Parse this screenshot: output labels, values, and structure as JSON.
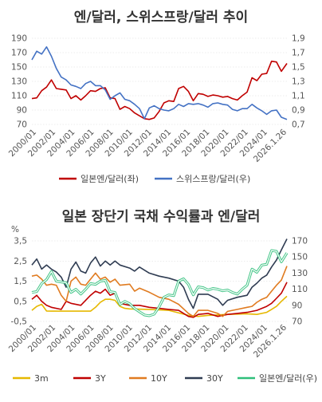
{
  "chart_data": [
    {
      "type": "line",
      "title": "엔/달러, 스위스프랑/달러 추이",
      "x_ticks": [
        "2000/01",
        "2002/01",
        "2004/01",
        "2006/01",
        "2008/01",
        "2010/01",
        "2012/01",
        "2014/01",
        "2016/01",
        "2018/01",
        "2020/01",
        "2022/01",
        "2024/01",
        "2026.1.26"
      ],
      "y_left": {
        "ticks": [
          "190",
          "170",
          "150",
          "130",
          "110",
          "90",
          "70"
        ],
        "range": [
          70,
          190
        ]
      },
      "y_right": {
        "ticks": [
          "1,9",
          "1,7",
          "1,5",
          "1,3",
          "1,1",
          "0,9",
          "0,7"
        ],
        "range": [
          0.7,
          1.9
        ]
      },
      "series": [
        {
          "name": "일본엔/달러(좌)",
          "axis": "left",
          "color": "#c00000",
          "x": [
            2000.0,
            2000.5,
            2001.0,
            2001.5,
            2002.0,
            2002.5,
            2003.0,
            2003.5,
            2004.0,
            2004.5,
            2005.0,
            2005.5,
            2006.0,
            2006.5,
            2007.0,
            2007.5,
            2008.0,
            2008.5,
            2009.0,
            2009.5,
            2010.0,
            2010.5,
            2011.0,
            2011.5,
            2012.0,
            2012.5,
            2013.0,
            2013.5,
            2014.0,
            2014.5,
            2015.0,
            2015.5,
            2016.0,
            2016.5,
            2017.0,
            2017.5,
            2018.0,
            2018.5,
            2019.0,
            2019.5,
            2020.0,
            2020.5,
            2021.0,
            2021.5,
            2022.0,
            2022.5,
            2023.0,
            2023.5,
            2024.0,
            2024.5,
            2025.0,
            2025.5,
            2026.07
          ],
          "values": [
            106,
            107,
            117,
            122,
            132,
            120,
            119,
            118,
            106,
            110,
            104,
            110,
            117,
            116,
            120,
            121,
            107,
            106,
            91,
            95,
            92,
            86,
            82,
            78,
            77,
            79,
            88,
            100,
            103,
            102,
            120,
            123,
            116,
            103,
            113,
            112,
            109,
            111,
            110,
            108,
            109,
            106,
            104,
            110,
            115,
            135,
            131,
            140,
            141,
            158,
            157,
            144,
            155
          ]
        },
        {
          "name": "스위스프랑/달러(우)",
          "axis": "right",
          "color": "#4472c4",
          "x": [
            2000.0,
            2000.5,
            2001.0,
            2001.5,
            2002.0,
            2002.5,
            2003.0,
            2003.5,
            2004.0,
            2004.5,
            2005.0,
            2005.5,
            2006.0,
            2006.5,
            2007.0,
            2007.5,
            2008.0,
            2008.5,
            2009.0,
            2009.5,
            2010.0,
            2010.5,
            2011.0,
            2011.5,
            2012.0,
            2012.5,
            2013.0,
            2013.5,
            2014.0,
            2014.5,
            2015.0,
            2015.5,
            2016.0,
            2016.5,
            2017.0,
            2017.5,
            2018.0,
            2018.5,
            2019.0,
            2019.5,
            2020.0,
            2020.5,
            2021.0,
            2021.5,
            2022.0,
            2022.5,
            2023.0,
            2023.5,
            2024.0,
            2024.5,
            2025.0,
            2025.5,
            2026.07
          ],
          "values": [
            1.6,
            1.72,
            1.68,
            1.78,
            1.65,
            1.48,
            1.36,
            1.32,
            1.25,
            1.23,
            1.2,
            1.27,
            1.3,
            1.24,
            1.24,
            1.18,
            1.05,
            1.1,
            1.14,
            1.05,
            1.03,
            0.98,
            0.92,
            0.78,
            0.93,
            0.96,
            0.92,
            0.9,
            0.89,
            0.92,
            0.98,
            0.95,
            0.99,
            0.98,
            0.99,
            0.97,
            0.94,
            0.99,
            1.0,
            0.98,
            0.97,
            0.91,
            0.89,
            0.92,
            0.92,
            0.98,
            0.93,
            0.89,
            0.84,
            0.89,
            0.9,
            0.8,
            0.77
          ]
        }
      ]
    },
    {
      "type": "line",
      "title": "일본 장단기 국채 수익률과 엔/달러",
      "unit_label": "%",
      "x_ticks": [
        "2000/01",
        "2002/01",
        "2004/01",
        "2006/01",
        "2008/01",
        "2010/01",
        "2012/01",
        "2014/01",
        "2016/01",
        "2018/01",
        "2020/01",
        "2022/01",
        "2024/01",
        "2026.1.26"
      ],
      "y_left": {
        "ticks": [
          "3,5",
          "2,5",
          "1,5",
          "0,5",
          "-0,5"
        ],
        "range": [
          -0.5,
          3.5
        ]
      },
      "y_right": {
        "ticks": [
          "170",
          "150",
          "130",
          "110",
          "90",
          "70"
        ],
        "range": [
          70,
          170
        ]
      },
      "series": [
        {
          "name": "3m",
          "axis": "left",
          "color": "#e6b800",
          "x": [
            2000.0,
            2000.5,
            2001.0,
            2001.5,
            2002.0,
            2003.0,
            2004.0,
            2005.0,
            2006.0,
            2006.5,
            2007.0,
            2007.5,
            2008.0,
            2008.5,
            2009.0,
            2009.5,
            2010.0,
            2012.0,
            2014.0,
            2016.0,
            2017.0,
            2018.0,
            2020.0,
            2022.0,
            2023.0,
            2024.0,
            2024.5,
            2025.0,
            2025.5,
            2026.07
          ],
          "values": [
            0.05,
            0.25,
            0.35,
            0.02,
            0.01,
            0.01,
            0.01,
            0.01,
            0.01,
            0.2,
            0.45,
            0.6,
            0.6,
            0.55,
            0.25,
            0.15,
            0.12,
            0.1,
            0.05,
            -0.2,
            -0.25,
            -0.2,
            -0.15,
            -0.12,
            -0.15,
            -0.05,
            0.1,
            0.25,
            0.5,
            0.75
          ]
        },
        {
          "name": "3Y",
          "axis": "left",
          "color": "#c00000",
          "x": [
            2000.0,
            2000.5,
            2001.0,
            2001.5,
            2002.0,
            2003.0,
            2003.5,
            2004.0,
            2005.0,
            2006.0,
            2006.5,
            2007.0,
            2007.5,
            2008.0,
            2008.5,
            2009.0,
            2010.0,
            2011.0,
            2012.0,
            2013.0,
            2014.0,
            2015.0,
            2016.0,
            2016.5,
            2017.0,
            2018.0,
            2019.0,
            2020.0,
            2021.0,
            2022.0,
            2022.5,
            2023.0,
            2024.0,
            2024.5,
            2025.0,
            2025.5,
            2026.07
          ],
          "values": [
            0.6,
            0.8,
            0.5,
            0.3,
            0.2,
            0.1,
            0.5,
            0.4,
            0.3,
            0.8,
            1.0,
            0.9,
            1.1,
            0.8,
            0.9,
            0.4,
            0.3,
            0.3,
            0.2,
            0.15,
            0.1,
            0.05,
            -0.25,
            -0.3,
            -0.15,
            -0.1,
            -0.25,
            -0.15,
            -0.1,
            -0.05,
            0.0,
            0.05,
            0.25,
            0.4,
            0.65,
            0.9,
            1.45
          ]
        },
        {
          "name": "10Y",
          "axis": "left",
          "color": "#e07b20",
          "x": [
            2000.0,
            2000.5,
            2001.0,
            2001.5,
            2002.0,
            2002.5,
            2003.0,
            2003.5,
            2004.0,
            2004.5,
            2005.0,
            2005.5,
            2006.0,
            2006.5,
            2007.0,
            2007.5,
            2008.0,
            2008.5,
            2009.0,
            2010.0,
            2010.5,
            2011.0,
            2012.0,
            2013.0,
            2014.0,
            2015.0,
            2016.0,
            2016.5,
            2017.0,
            2018.0,
            2019.0,
            2019.5,
            2020.0,
            2021.0,
            2022.0,
            2022.5,
            2023.0,
            2023.5,
            2024.0,
            2024.5,
            2025.0,
            2025.5,
            2026.07
          ],
          "values": [
            1.75,
            1.8,
            1.6,
            1.3,
            1.35,
            1.3,
            0.8,
            0.5,
            1.5,
            1.7,
            1.35,
            1.3,
            1.6,
            1.9,
            1.6,
            1.7,
            1.45,
            1.6,
            1.3,
            1.35,
            1.0,
            1.15,
            0.95,
            0.7,
            0.6,
            0.35,
            -0.1,
            -0.25,
            0.05,
            0.05,
            -0.1,
            -0.25,
            0.0,
            0.1,
            0.2,
            0.25,
            0.45,
            0.6,
            0.7,
            1.0,
            1.3,
            1.55,
            2.25
          ]
        },
        {
          "name": "30Y",
          "axis": "left",
          "color": "#2f3c52",
          "x": [
            2000.0,
            2000.5,
            2001.0,
            2001.5,
            2002.0,
            2002.5,
            2003.0,
            2003.5,
            2004.0,
            2004.5,
            2005.0,
            2005.5,
            2006.0,
            2006.5,
            2007.0,
            2007.5,
            2008.0,
            2008.5,
            2009.0,
            2010.0,
            2010.5,
            2011.0,
            2012.0,
            2013.0,
            2014.0,
            2015.0,
            2015.5,
            2016.0,
            2016.5,
            2017.0,
            2018.0,
            2019.0,
            2019.5,
            2020.0,
            2021.0,
            2022.0,
            2022.5,
            2023.0,
            2023.5,
            2024.0,
            2024.5,
            2025.0,
            2025.5,
            2026.07
          ],
          "values": [
            2.3,
            2.6,
            2.1,
            2.3,
            2.1,
            1.95,
            1.7,
            1.2,
            2.1,
            2.45,
            2.0,
            1.9,
            2.4,
            2.7,
            2.25,
            2.5,
            2.3,
            2.5,
            2.3,
            2.15,
            2.0,
            2.2,
            1.9,
            1.75,
            1.65,
            1.5,
            1.2,
            0.6,
            0.15,
            0.85,
            0.85,
            0.6,
            0.3,
            0.55,
            0.7,
            0.8,
            1.2,
            1.4,
            1.65,
            1.8,
            2.2,
            2.55,
            3.05,
            3.6
          ]
        },
        {
          "name": "일본엔/달러(우)",
          "axis": "right",
          "color": "#2fbf7a",
          "x": [
            2000.0,
            2000.5,
            2001.0,
            2001.5,
            2002.0,
            2002.5,
            2003.0,
            2003.5,
            2004.0,
            2004.5,
            2005.0,
            2005.5,
            2006.0,
            2006.5,
            2007.0,
            2007.5,
            2008.0,
            2008.5,
            2009.0,
            2009.5,
            2010.0,
            2010.5,
            2011.0,
            2011.5,
            2012.0,
            2012.5,
            2013.0,
            2013.5,
            2014.0,
            2014.5,
            2015.0,
            2015.5,
            2016.0,
            2016.5,
            2017.0,
            2017.5,
            2018.0,
            2018.5,
            2019.0,
            2019.5,
            2020.0,
            2020.5,
            2021.0,
            2021.5,
            2022.0,
            2022.5,
            2023.0,
            2023.5,
            2024.0,
            2024.5,
            2025.0,
            2025.5,
            2026.07
          ],
          "values": [
            106,
            107,
            117,
            122,
            132,
            120,
            119,
            118,
            106,
            110,
            104,
            110,
            117,
            116,
            120,
            121,
            107,
            106,
            91,
            95,
            92,
            86,
            82,
            78,
            77,
            79,
            88,
            100,
            103,
            102,
            120,
            123,
            116,
            103,
            113,
            112,
            109,
            111,
            110,
            108,
            109,
            106,
            104,
            110,
            115,
            135,
            131,
            140,
            141,
            158,
            157,
            144,
            155
          ]
        }
      ]
    }
  ]
}
